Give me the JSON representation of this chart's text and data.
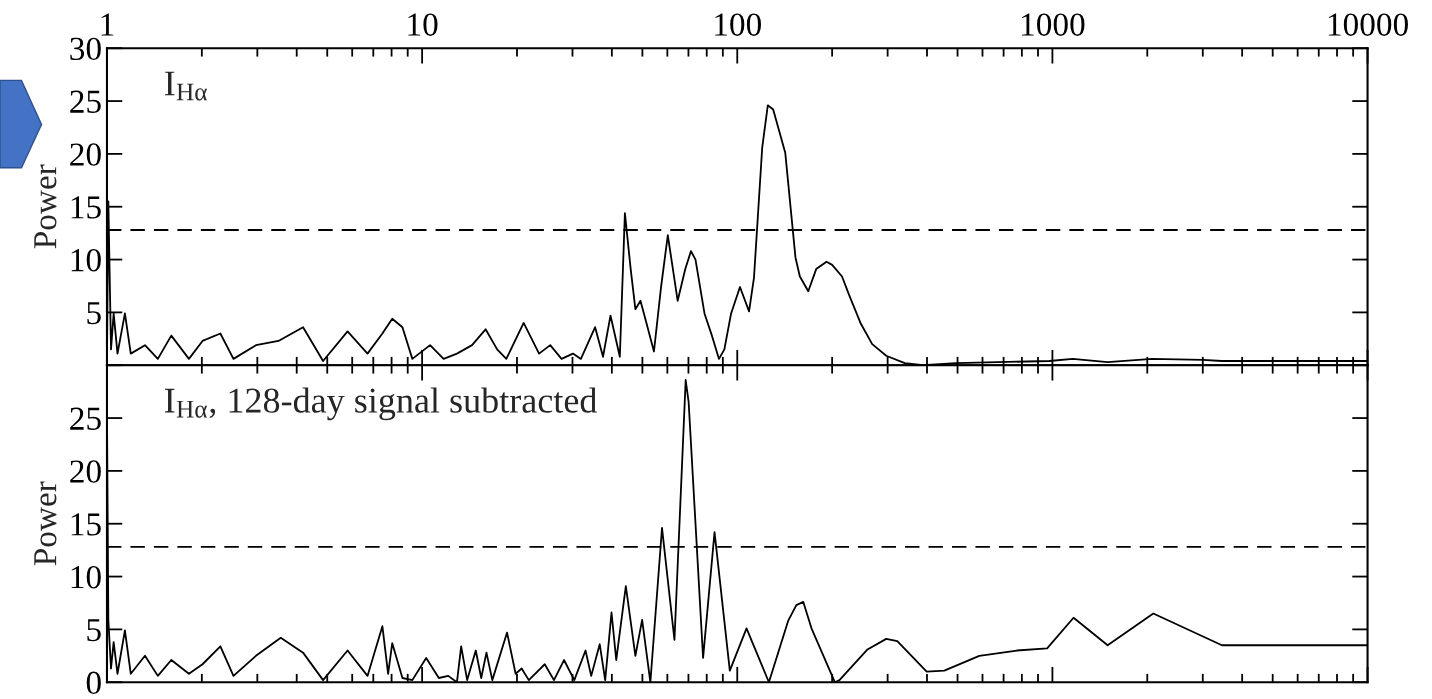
{
  "chart_data": [
    {
      "type": "line",
      "ylabel": "Power",
      "annotations": [
        "I$_{Hα}$"
      ],
      "xlim": [
        1,
        10000
      ],
      "xticks": [
        1,
        10,
        100,
        1000,
        10000
      ],
      "ylim": [
        0,
        30
      ],
      "yticks": [
        {
          "value": 0,
          "label": null
        },
        5,
        10,
        15,
        20,
        25,
        30
      ],
      "log": "x",
      "grid": false,
      "legend": false,
      "ref_lines": [
        {
          "axis": "y",
          "value": 12.8,
          "label": null,
          "color": "#000000",
          "line_style": "dashed"
        }
      ],
      "series": [
        {
          "color": "#000000",
          "line_style": "solid",
          "x": [
            1.0,
            1.01,
            1.03,
            1.05,
            1.08,
            1.14,
            1.19,
            1.32,
            1.45,
            1.6,
            1.82,
            2.01,
            2.29,
            2.52,
            2.97,
            3.5,
            4.19,
            4.85,
            5.8,
            6.71,
            7.48,
            8.04,
            8.66,
            9.31,
            10.6,
            11.7,
            12.9,
            14.4,
            15.9,
            17.3,
            18.5,
            21.0,
            23.5,
            25.5,
            27.7,
            30.1,
            31.9,
            35.4,
            37.5,
            39.6,
            42.4,
            44.0,
            45.9,
            47.5,
            49.3,
            51.5,
            54.4,
            57.3,
            60.2,
            64.7,
            68.4,
            71.3,
            73.7,
            78.7,
            83.1,
            87.5,
            91.0,
            95.6,
            102,
            109,
            113,
            120,
            125,
            130,
            142,
            153,
            158,
            168,
            178,
            192,
            200,
            215,
            226,
            246,
            268,
            297,
            340,
            389,
            494,
            977,
            1160,
            1497,
            2070,
            3007,
            3450,
            9930
          ],
          "values": [
            0.5,
            15.5,
            1.5,
            4.9,
            1.1,
            4.9,
            1.1,
            1.9,
            0.6,
            2.8,
            0.6,
            2.3,
            3.0,
            0.6,
            1.9,
            2.3,
            3.6,
            0.4,
            3.2,
            1.1,
            3.0,
            4.4,
            3.6,
            0.6,
            1.9,
            0.6,
            1.1,
            1.9,
            3.4,
            1.5,
            0.6,
            4.0,
            1.1,
            1.9,
            0.6,
            1.1,
            0.6,
            3.6,
            0.8,
            4.7,
            0.8,
            14.4,
            9.1,
            5.3,
            6.1,
            4.0,
            1.3,
            7.4,
            12.3,
            6.1,
            9.1,
            10.8,
            10.0,
            4.9,
            2.8,
            0.6,
            1.5,
            4.9,
            7.4,
            5.1,
            8.3,
            20.6,
            24.6,
            24.2,
            20.1,
            10.2,
            8.4,
            7.0,
            9.1,
            9.8,
            9.5,
            8.4,
            6.7,
            4.0,
            2.0,
            0.9,
            0.2,
            0,
            0.2,
            0.4,
            0.6,
            0.3,
            0.6,
            0.5,
            0.4,
            0.4
          ]
        }
      ]
    },
    {
      "type": "line",
      "ylabel": "Power",
      "annotations": [
        "I$_{Hα}$, 128-day signal subtracted"
      ],
      "xlim": [
        1,
        10000
      ],
      "xticks": [
        1,
        10,
        100,
        1000,
        10000
      ],
      "ylim": [
        0,
        30
      ],
      "yticks": [
        0,
        5,
        10,
        15,
        20,
        25,
        {
          "value": 30,
          "label": null
        }
      ],
      "log": "x",
      "tick_labels": "y",
      "grid": false,
      "legend": false,
      "ref_lines": [
        {
          "axis": "y",
          "value": 12.8,
          "label": null,
          "color": "#000000",
          "line_style": "dashed"
        }
      ],
      "series": [
        {
          "color": "#000000",
          "line_style": "solid",
          "x": [
            1.0,
            1.01,
            1.03,
            1.05,
            1.08,
            1.14,
            1.19,
            1.32,
            1.45,
            1.6,
            1.82,
            2.01,
            2.29,
            2.52,
            2.97,
            3.56,
            4.19,
            4.85,
            5.8,
            6.71,
            7.48,
            7.8,
            8.04,
            8.66,
            9.31,
            10.3,
            11.3,
            12.1,
            12.9,
            13.3,
            13.9,
            14.8,
            15.4,
            16.0,
            16.7,
            18.6,
            19.8,
            20.7,
            21.8,
            24.5,
            26.2,
            28.2,
            30.4,
            33.0,
            34.4,
            36.6,
            38.1,
            39.9,
            41.3,
            44.3,
            47.5,
            49.9,
            53.0,
            57.7,
            63.2,
            68.6,
            70.1,
            77.9,
            84.7,
            94.7,
            107,
            126,
            145,
            154,
            162,
            172,
            204,
            211,
            259,
            297,
            322,
            399,
            454,
            586,
            771,
            962,
            1167,
            1497,
            2090,
            3450,
            9930
          ],
          "values": [
            25.8,
            5.9,
            1.3,
            3.8,
            0.8,
            4.9,
            0.8,
            2.5,
            0.6,
            2.1,
            0.8,
            1.7,
            3.4,
            0.6,
            2.5,
            4.2,
            2.8,
            0.2,
            3.0,
            0.6,
            5.3,
            0.8,
            3.7,
            0.4,
            0.2,
            2.3,
            0.4,
            0.6,
            0,
            3.4,
            0.2,
            3.0,
            0.4,
            2.8,
            0.2,
            4.7,
            0.8,
            1.3,
            0.2,
            1.7,
            0.2,
            2.1,
            0.2,
            3.0,
            0.6,
            3.6,
            0.2,
            6.6,
            2.1,
            9.1,
            2.5,
            5.9,
            0,
            14.6,
            4.0,
            28.6,
            26.5,
            2.3,
            14.2,
            1.1,
            5.1,
            0,
            5.8,
            7.3,
            7.6,
            5.1,
            0,
            0.2,
            3.1,
            4.1,
            3.9,
            1.0,
            1.1,
            2.5,
            3.0,
            3.2,
            6.1,
            3.5,
            6.5,
            3.5,
            3.5
          ]
        }
      ]
    }
  ]
}
